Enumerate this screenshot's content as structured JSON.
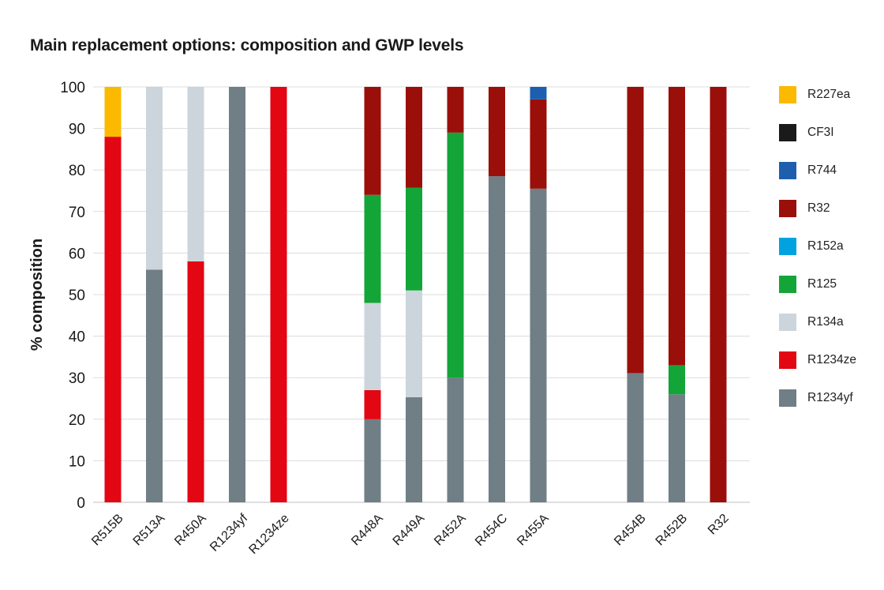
{
  "chart_data": {
    "type": "bar",
    "stacked": true,
    "title": "Main replacement options: composition and GWP levels",
    "ylabel": "% composition",
    "xlabel": "",
    "ylim": [
      0,
      100
    ],
    "yticks": [
      0,
      10,
      20,
      30,
      40,
      50,
      60,
      70,
      80,
      90,
      100
    ],
    "grid": true,
    "legend_position": "right",
    "categories": [
      "R515B",
      "R513A",
      "R450A",
      "R1234yf",
      "R1234ze",
      "R448A",
      "R449A",
      "R452A",
      "R454C",
      "R455A",
      "R454B",
      "R452B",
      "R32"
    ],
    "category_groups": [
      [
        0,
        1,
        2,
        3,
        4
      ],
      [
        5,
        6,
        7,
        8,
        9
      ],
      [
        10,
        11,
        12
      ]
    ],
    "series": [
      {
        "name": "R1234yf",
        "color": "#707e86",
        "values": [
          0,
          56,
          0,
          100,
          0,
          20,
          25.3,
          30,
          78.5,
          75.5,
          31.1,
          26,
          0
        ]
      },
      {
        "name": "R1234ze",
        "color": "#e30613",
        "values": [
          88,
          0,
          58,
          0,
          100,
          7,
          0,
          0,
          0,
          0,
          0,
          0,
          0
        ]
      },
      {
        "name": "R134a",
        "color": "#ccd5dc",
        "values": [
          0,
          44,
          42,
          0,
          0,
          21,
          25.7,
          0,
          0,
          0,
          0,
          0,
          0
        ]
      },
      {
        "name": "R125",
        "color": "#13a538",
        "values": [
          0,
          0,
          0,
          0,
          0,
          26,
          24.7,
          59,
          0,
          0,
          0,
          7,
          0
        ]
      },
      {
        "name": "R152a",
        "color": "#00a3e0",
        "values": [
          0,
          0,
          0,
          0,
          0,
          0,
          0,
          0,
          0,
          0,
          0,
          0,
          0
        ]
      },
      {
        "name": "R32",
        "color": "#9b0f0a",
        "values": [
          0,
          0,
          0,
          0,
          0,
          26,
          24.3,
          11,
          21.5,
          21.5,
          68.9,
          67,
          100
        ]
      },
      {
        "name": "R744",
        "color": "#1d5fae",
        "values": [
          0,
          0,
          0,
          0,
          0,
          0,
          0,
          0,
          0,
          3,
          0,
          0,
          0
        ]
      },
      {
        "name": "CF3I",
        "color": "#1a1a1a",
        "values": [
          0,
          0,
          0,
          0,
          0,
          0,
          0,
          0,
          0,
          0,
          0,
          0,
          0
        ]
      },
      {
        "name": "R227ea",
        "color": "#fbb900",
        "values": [
          12,
          0,
          0,
          0,
          0,
          0,
          0,
          0,
          0,
          0,
          0,
          0,
          0
        ]
      }
    ],
    "legend_order": [
      "R227ea",
      "CF3I",
      "R744",
      "R32",
      "R152a",
      "R125",
      "R134a",
      "R1234ze",
      "R1234yf"
    ]
  }
}
